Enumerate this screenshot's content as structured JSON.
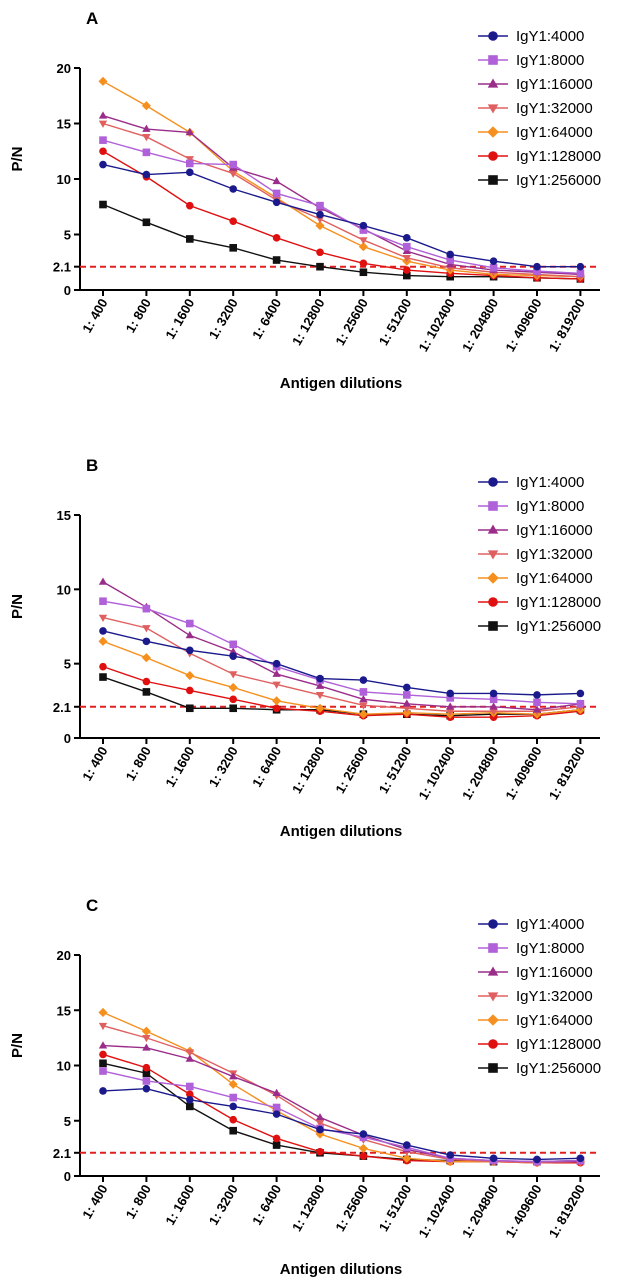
{
  "figure": {
    "colors": {
      "IgY1:4000": "#1a1a8c",
      "IgY1:8000": "#b060d8",
      "IgY1:16000": "#9b2d8a",
      "IgY1:32000": "#e06060",
      "IgY1:64000": "#f5901e",
      "IgY1:128000": "#e01010",
      "IgY1:256000": "#111111",
      "cutoff_line": "#e02020"
    },
    "markers": {
      "IgY1:4000": "circle",
      "IgY1:8000": "square",
      "IgY1:16000": "triangle-up",
      "IgY1:32000": "triangle-down",
      "IgY1:64000": "diamond",
      "IgY1:128000": "circle",
      "IgY1:256000": "square"
    }
  },
  "chart_data": [
    {
      "type": "line",
      "panel": "A",
      "xlabel": "Antigen dilutions",
      "ylabel": "P/N",
      "ylim": [
        0,
        20
      ],
      "yticks": [
        "0",
        "2.1",
        "5",
        "10",
        "15",
        "20"
      ],
      "ytick_values": [
        0,
        2.1,
        5,
        10,
        15,
        20
      ],
      "cutoff": 2.1,
      "categories": [
        "1: 400",
        "1: 800",
        "1: 1600",
        "1: 3200",
        "1: 6400",
        "1: 12800",
        "1: 25600",
        "1: 51200",
        "1: 102400",
        "1: 204800",
        "1: 409600",
        "1: 819200"
      ],
      "series": [
        {
          "name": "IgY1:4000",
          "values": [
            11.3,
            10.4,
            10.6,
            9.1,
            7.9,
            6.8,
            5.8,
            4.7,
            3.2,
            2.6,
            2.1,
            2.1
          ]
        },
        {
          "name": "IgY1:8000",
          "values": [
            13.5,
            12.4,
            11.4,
            11.3,
            8.7,
            7.6,
            5.4,
            3.9,
            2.7,
            2.0,
            1.7,
            1.5
          ]
        },
        {
          "name": "IgY1:16000",
          "values": [
            15.7,
            14.5,
            14.2,
            11.0,
            9.8,
            7.4,
            5.5,
            3.5,
            2.3,
            1.8,
            1.6,
            1.4
          ]
        },
        {
          "name": "IgY1:32000",
          "values": [
            15.0,
            13.8,
            11.8,
            10.5,
            8.1,
            6.4,
            4.5,
            2.9,
            2.0,
            1.6,
            1.4,
            1.2
          ]
        },
        {
          "name": "IgY1:64000",
          "values": [
            18.8,
            16.6,
            14.2,
            10.7,
            8.3,
            5.8,
            3.9,
            2.6,
            1.8,
            1.4,
            1.3,
            1.2
          ]
        },
        {
          "name": "IgY1:128000",
          "values": [
            12.5,
            10.2,
            7.6,
            6.2,
            4.7,
            3.4,
            2.4,
            1.8,
            1.5,
            1.3,
            1.1,
            1.0
          ]
        },
        {
          "name": "IgY1:256000",
          "values": [
            7.7,
            6.1,
            4.6,
            3.8,
            2.7,
            2.1,
            1.6,
            1.3,
            1.2,
            1.2,
            1.1,
            1.0
          ]
        }
      ],
      "legend": "top-right"
    },
    {
      "type": "line",
      "panel": "B",
      "xlabel": "Antigen dilutions",
      "ylabel": "P/N",
      "ylim": [
        0,
        15
      ],
      "yticks": [
        "0",
        "2.1",
        "5",
        "10",
        "15"
      ],
      "ytick_values": [
        0,
        2.1,
        5,
        10,
        15
      ],
      "cutoff": 2.1,
      "categories": [
        "1: 400",
        "1: 800",
        "1: 1600",
        "1: 3200",
        "1: 6400",
        "1: 12800",
        "1: 25600",
        "1: 51200",
        "1: 102400",
        "1: 204800",
        "1: 409600",
        "1: 819200"
      ],
      "series": [
        {
          "name": "IgY1:4000",
          "values": [
            7.2,
            6.5,
            5.9,
            5.5,
            5.0,
            4.0,
            3.9,
            3.4,
            3.0,
            3.0,
            2.9,
            3.0
          ]
        },
        {
          "name": "IgY1:8000",
          "values": [
            9.2,
            8.7,
            7.7,
            6.3,
            4.8,
            3.9,
            3.1,
            2.9,
            2.7,
            2.6,
            2.4,
            2.3
          ]
        },
        {
          "name": "IgY1:16000",
          "values": [
            10.5,
            8.8,
            6.9,
            5.8,
            4.3,
            3.5,
            2.6,
            2.3,
            2.1,
            2.1,
            1.9,
            2.3
          ]
        },
        {
          "name": "IgY1:32000",
          "values": [
            8.1,
            7.4,
            5.7,
            4.3,
            3.6,
            2.9,
            2.2,
            2.0,
            1.8,
            1.8,
            1.8,
            2.1
          ]
        },
        {
          "name": "IgY1:64000",
          "values": [
            6.5,
            5.4,
            4.2,
            3.4,
            2.5,
            2.0,
            1.6,
            1.7,
            1.6,
            1.7,
            1.6,
            1.9
          ]
        },
        {
          "name": "IgY1:128000",
          "values": [
            4.8,
            3.8,
            3.2,
            2.6,
            2.0,
            1.8,
            1.5,
            1.6,
            1.4,
            1.4,
            1.5,
            1.8
          ]
        },
        {
          "name": "IgY1:256000",
          "values": [
            4.1,
            3.1,
            2.0,
            2.0,
            1.9,
            1.9,
            1.6,
            1.6,
            1.5,
            1.6,
            1.6,
            1.9
          ]
        }
      ],
      "legend": "top-right"
    },
    {
      "type": "line",
      "panel": "C",
      "xlabel": "Antigen dilutions",
      "ylabel": "P/N",
      "ylim": [
        0,
        20
      ],
      "yticks": [
        "0",
        "2.1",
        "5",
        "10",
        "15",
        "20"
      ],
      "ytick_values": [
        0,
        2.1,
        5,
        10,
        15,
        20
      ],
      "cutoff": 2.1,
      "categories": [
        "1: 400",
        "1: 800",
        "1: 1600",
        "1: 3200",
        "1: 6400",
        "1: 12800",
        "1: 25600",
        "1: 51200",
        "1: 102400",
        "1: 204800",
        "1: 409600",
        "1: 819200"
      ],
      "series": [
        {
          "name": "IgY1:4000",
          "values": [
            7.7,
            7.9,
            6.9,
            6.3,
            5.6,
            4.2,
            3.8,
            2.8,
            1.9,
            1.6,
            1.5,
            1.6
          ]
        },
        {
          "name": "IgY1:8000",
          "values": [
            9.5,
            8.6,
            8.1,
            7.1,
            6.2,
            4.3,
            3.5,
            2.6,
            1.6,
            1.4,
            1.3,
            1.4
          ]
        },
        {
          "name": "IgY1:16000",
          "values": [
            11.8,
            11.6,
            10.6,
            9.0,
            7.5,
            5.3,
            3.7,
            2.4,
            1.6,
            1.4,
            1.3,
            1.3
          ]
        },
        {
          "name": "IgY1:32000",
          "values": [
            13.6,
            12.5,
            11.2,
            9.3,
            7.3,
            4.8,
            3.3,
            2.2,
            1.5,
            1.3,
            1.2,
            1.3
          ]
        },
        {
          "name": "IgY1:64000",
          "values": [
            14.8,
            13.1,
            11.3,
            8.3,
            5.9,
            3.8,
            2.5,
            1.6,
            1.3,
            1.3,
            1.2,
            1.3
          ]
        },
        {
          "name": "IgY1:128000",
          "values": [
            11.0,
            9.8,
            7.4,
            5.1,
            3.4,
            2.2,
            1.8,
            1.4,
            1.3,
            1.3,
            1.2,
            1.2
          ]
        },
        {
          "name": "IgY1:256000",
          "values": [
            10.2,
            9.3,
            6.3,
            4.1,
            2.8,
            2.1,
            1.8,
            1.5,
            1.4,
            1.3,
            1.3,
            1.4
          ]
        }
      ],
      "legend": "top-right"
    }
  ]
}
